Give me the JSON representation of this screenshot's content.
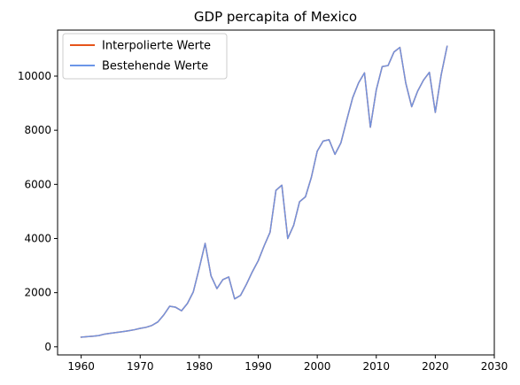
{
  "chart_data": {
    "type": "line",
    "title": "GDP percapita of Mexico",
    "xlabel": "",
    "ylabel": "",
    "xlim": [
      1956,
      2030
    ],
    "ylim": [
      -300,
      11700
    ],
    "xticks": [
      1960,
      1970,
      1980,
      1990,
      2000,
      2010,
      2020,
      2030
    ],
    "yticks": [
      0,
      2000,
      4000,
      6000,
      8000,
      10000
    ],
    "grid": false,
    "legend_position": "top-left",
    "series": [
      {
        "name": "Interpolierte Werte",
        "color": "#e6541a",
        "x": [
          1960,
          1961,
          1962,
          1963,
          1964,
          1965,
          1966,
          1967,
          1968,
          1969,
          1970,
          1971,
          1972,
          1973,
          1974,
          1975,
          1976,
          1977,
          1978,
          1979,
          1980,
          1981,
          1982,
          1983,
          1984,
          1985,
          1986,
          1987,
          1988,
          1989,
          1990,
          1991,
          1992,
          1993,
          1994,
          1995,
          1996,
          1997,
          1998,
          1999,
          2000,
          2001,
          2002,
          2003,
          2004,
          2005,
          2006,
          2007,
          2008,
          2009,
          2010,
          2011,
          2012,
          2013,
          2014,
          2015,
          2016,
          2017,
          2018,
          2019,
          2020,
          2021,
          2022
        ],
        "y": [
          355,
          375,
          390,
          415,
          470,
          500,
          530,
          560,
          590,
          630,
          680,
          720,
          790,
          920,
          1180,
          1500,
          1460,
          1330,
          1600,
          2030,
          2900,
          3820,
          2620,
          2150,
          2480,
          2580,
          1770,
          1900,
          2310,
          2770,
          3180,
          3730,
          4230,
          5780,
          5970,
          4000,
          4490,
          5360,
          5540,
          6260,
          7230,
          7600,
          7650,
          7110,
          7530,
          8380,
          9200,
          9750,
          10120,
          8110,
          9490,
          10350,
          10390,
          10890,
          11060,
          9740,
          8870,
          9440,
          9850,
          10140,
          8660,
          10050,
          11100
        ]
      },
      {
        "name": "Bestehende Werte",
        "color": "#6b96e8",
        "x": [
          1960,
          1961,
          1962,
          1963,
          1964,
          1965,
          1966,
          1967,
          1968,
          1969,
          1970,
          1971,
          1972,
          1973,
          1974,
          1975,
          1976,
          1977,
          1978,
          1979,
          1980,
          1981,
          1982,
          1983,
          1984,
          1985,
          1986,
          1987,
          1988,
          1989,
          1990,
          1991,
          1992,
          1993,
          1994,
          1995,
          1996,
          1997,
          1998,
          1999,
          2000,
          2001,
          2002,
          2003,
          2004,
          2005,
          2006,
          2007,
          2008,
          2009,
          2010,
          2011,
          2012,
          2013,
          2014,
          2015,
          2016,
          2017,
          2018,
          2019,
          2020,
          2021,
          2022
        ],
        "y": [
          355,
          375,
          390,
          415,
          470,
          500,
          530,
          560,
          590,
          630,
          680,
          720,
          790,
          920,
          1180,
          1500,
          1460,
          1330,
          1600,
          2030,
          2900,
          3820,
          2620,
          2150,
          2480,
          2580,
          1770,
          1900,
          2310,
          2770,
          3180,
          3730,
          4230,
          5780,
          5970,
          4000,
          4490,
          5360,
          5540,
          6260,
          7230,
          7600,
          7650,
          7110,
          7530,
          8380,
          9200,
          9750,
          10120,
          8110,
          9490,
          10350,
          10390,
          10890,
          11060,
          9740,
          8870,
          9440,
          9850,
          10140,
          8660,
          10050,
          11100
        ]
      }
    ]
  }
}
